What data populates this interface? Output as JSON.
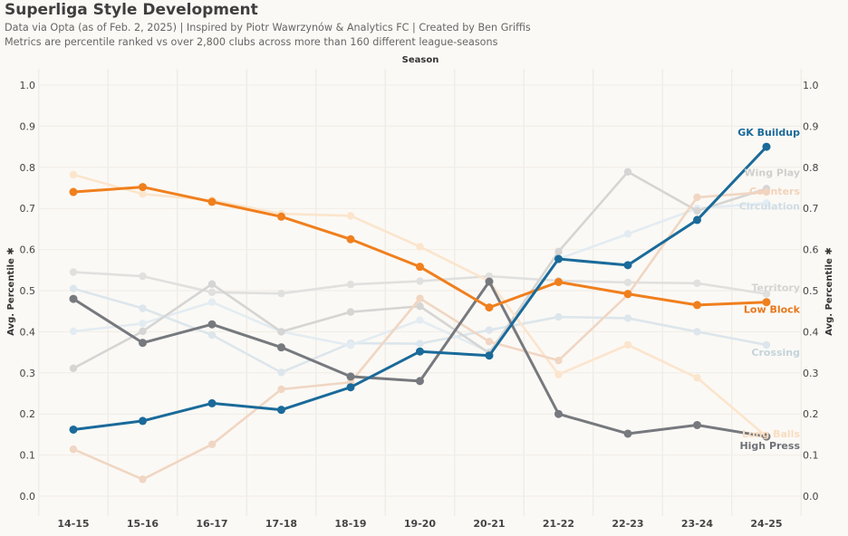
{
  "header": {
    "title": "Superliga Style Development",
    "subtitle_line1": "Data via Opta (as of Feb. 2, 2025) | Inspired by Piotr Wawrzynów & Analytics FC | Created by Ben Griffis",
    "subtitle_line2": "Metrics are percentile ranked vs over 2,800 clubs across more than 160 different league-seasons"
  },
  "chart_data": {
    "type": "line",
    "title": "Superliga Style Development",
    "xlabel": "Season",
    "ylabel": "Avg. Percentile",
    "ylabel_right": "Avg. Percentile",
    "ylabel_suffix": "✱",
    "ylim": [
      0,
      1
    ],
    "yticks": [
      "0.0",
      "0.1",
      "0.2",
      "0.3",
      "0.4",
      "0.5",
      "0.6",
      "0.7",
      "0.8",
      "0.9",
      "1.0"
    ],
    "grid": true,
    "categories": [
      "14-15",
      "15-16",
      "16-17",
      "17-18",
      "18-19",
      "19-20",
      "20-21",
      "21-22",
      "22-23",
      "23-24",
      "24-25"
    ],
    "series": [
      {
        "name": "Crossing",
        "color": "#dce6ec",
        "muted": true,
        "label_color": "#c4d3dc",
        "values": [
          0.505,
          0.457,
          0.392,
          0.301,
          0.372,
          0.371,
          0.404,
          0.436,
          0.433,
          0.4,
          0.368
        ]
      },
      {
        "name": "Circulation",
        "color": "#e3ecf2",
        "muted": true,
        "label_color": "#cfdde6",
        "values": [
          0.401,
          0.42,
          0.472,
          0.4,
          0.367,
          0.428,
          0.351,
          0.577,
          0.638,
          0.7,
          0.713
        ]
      },
      {
        "name": "Territory",
        "color": "#e0e0df",
        "muted": true,
        "label_color": "#d4d4d2",
        "values": [
          0.545,
          0.535,
          0.496,
          0.493,
          0.515,
          0.523,
          0.535,
          0.524,
          0.52,
          0.518,
          0.492
        ]
      },
      {
        "name": "Wing Play",
        "color": "#d5d5d4",
        "muted": true,
        "label_color": "#cfcfce",
        "values": [
          0.311,
          0.401,
          0.516,
          0.4,
          0.448,
          0.462,
          0.348,
          0.595,
          0.789,
          0.694,
          0.748
        ]
      },
      {
        "name": "Long Balls",
        "color": "#fbe5cd",
        "muted": true,
        "label_color": "#f9dcc0",
        "values": [
          0.782,
          0.735,
          0.72,
          0.687,
          0.682,
          0.607,
          0.523,
          0.296,
          0.368,
          0.288,
          0.145
        ]
      },
      {
        "name": "Counters",
        "color": "#f0d6c3",
        "muted": true,
        "label_color": "#f2d3bb",
        "values": [
          0.114,
          0.041,
          0.126,
          0.26,
          0.277,
          0.481,
          0.376,
          0.33,
          0.49,
          0.727,
          0.74
        ]
      },
      {
        "name": "High Press",
        "color": "#76797e",
        "muted": false,
        "label_color": "#6e7278",
        "values": [
          0.48,
          0.373,
          0.418,
          0.362,
          0.291,
          0.28,
          0.522,
          0.2,
          0.152,
          0.173,
          0.145
        ]
      },
      {
        "name": "Low Block",
        "color": "#f07f1d",
        "muted": false,
        "label_color": "#e8781d",
        "values": [
          0.74,
          0.752,
          0.716,
          0.68,
          0.625,
          0.558,
          0.459,
          0.521,
          0.492,
          0.465,
          0.472
        ]
      },
      {
        "name": "GK Buildup",
        "color": "#1a6a9a",
        "muted": false,
        "label_color": "#1a6a9a",
        "values": [
          0.162,
          0.183,
          0.226,
          0.21,
          0.265,
          0.352,
          0.342,
          0.577,
          0.562,
          0.672,
          0.85
        ]
      }
    ]
  }
}
